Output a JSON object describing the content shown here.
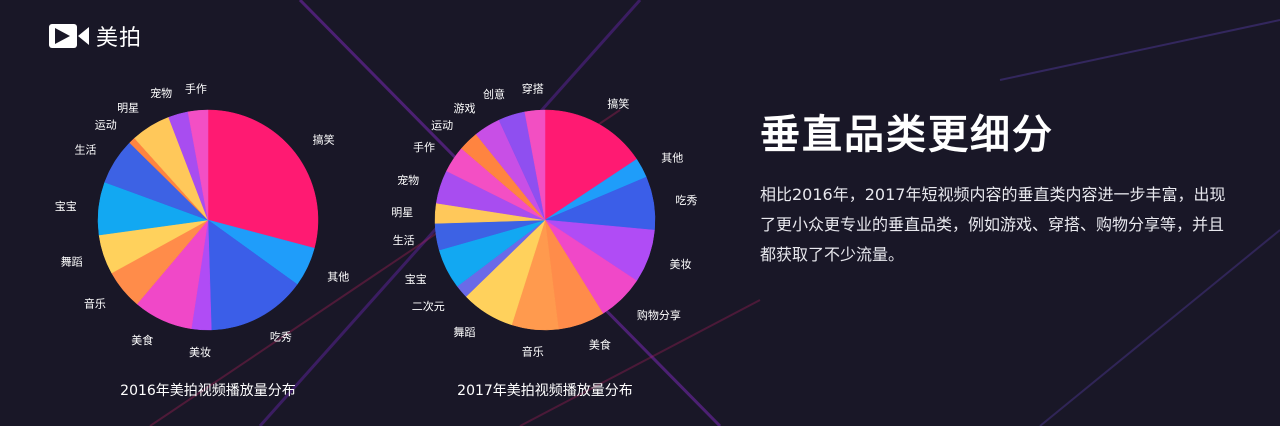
{
  "brand": {
    "name": "美拍"
  },
  "headline": "垂直品类更细分",
  "description": "相比2016年，2017年短视频内容的垂直类内容进一步丰富，出现了更小众更专业的垂直品类，例如游戏、穿搭、购物分享等，并且都获取了不少流量。",
  "chart_data": [
    {
      "type": "pie",
      "title": "2016年美拍视频播放量分布",
      "start_angle_deg": 0,
      "direction": "clockwise",
      "slices": [
        {
          "label": "搞笑",
          "value": 30.0,
          "color": "#ff1a72"
        },
        {
          "label": "其他",
          "value": 6.0,
          "color": "#1f9dfa"
        },
        {
          "label": "吃秀",
          "value": 15.0,
          "color": "#3b5ee8"
        },
        {
          "label": "美妆",
          "value": 3.0,
          "color": "#b04cf5"
        },
        {
          "label": "美食",
          "value": 9.0,
          "color": "#f048c8"
        },
        {
          "label": "音乐",
          "value": 6.0,
          "color": "#ff8c4a"
        },
        {
          "label": "舞蹈",
          "value": 6.0,
          "color": "#ffd15c"
        },
        {
          "label": "宝宝",
          "value": 8.0,
          "color": "#12a8f2"
        },
        {
          "label": "生活",
          "value": 7.0,
          "color": "#3d62e4"
        },
        {
          "label": "运动",
          "value": 1.0,
          "color": "#ff8440"
        },
        {
          "label": "明星",
          "value": 6.0,
          "color": "#ffc85a"
        },
        {
          "label": "宠物",
          "value": 3.0,
          "color": "#a84df0"
        },
        {
          "label": "手作",
          "value": 3.0,
          "color": "#f34fc4"
        }
      ]
    },
    {
      "type": "pie",
      "title": "2017年美拍视频播放量分布",
      "start_angle_deg": 0,
      "direction": "clockwise",
      "slices": [
        {
          "label": "搞笑",
          "value": 16.0,
          "color": "#ff1a72"
        },
        {
          "label": "其他",
          "value": 3.0,
          "color": "#1f9dfa"
        },
        {
          "label": "吃秀",
          "value": 8.0,
          "color": "#3b5ee8"
        },
        {
          "label": "美妆",
          "value": 8.0,
          "color": "#b04cf5"
        },
        {
          "label": "购物分享",
          "value": 7.0,
          "color": "#f048c8"
        },
        {
          "label": "美食",
          "value": 7.0,
          "color": "#ff8c4a"
        },
        {
          "label": "音乐",
          "value": 7.0,
          "color": "#ff9a4e"
        },
        {
          "label": "舞蹈",
          "value": 8.0,
          "color": "#ffd15c"
        },
        {
          "label": "二次元",
          "value": 2.0,
          "color": "#6a6ae8"
        },
        {
          "label": "宝宝",
          "value": 6.0,
          "color": "#12a8f2"
        },
        {
          "label": "生活",
          "value": 4.0,
          "color": "#3d62e4"
        },
        {
          "label": "明星",
          "value": 3.0,
          "color": "#ffc85a"
        },
        {
          "label": "宠物",
          "value": 5.0,
          "color": "#a84df0"
        },
        {
          "label": "手作",
          "value": 4.0,
          "color": "#f34fc4"
        },
        {
          "label": "运动",
          "value": 3.0,
          "color": "#ff8440"
        },
        {
          "label": "游戏",
          "value": 4.0,
          "color": "#c84fe6"
        },
        {
          "label": "创意",
          "value": 4.0,
          "color": "#8f4ff0"
        },
        {
          "label": "穿搭",
          "value": 3.0,
          "color": "#f24fc2"
        }
      ]
    }
  ]
}
